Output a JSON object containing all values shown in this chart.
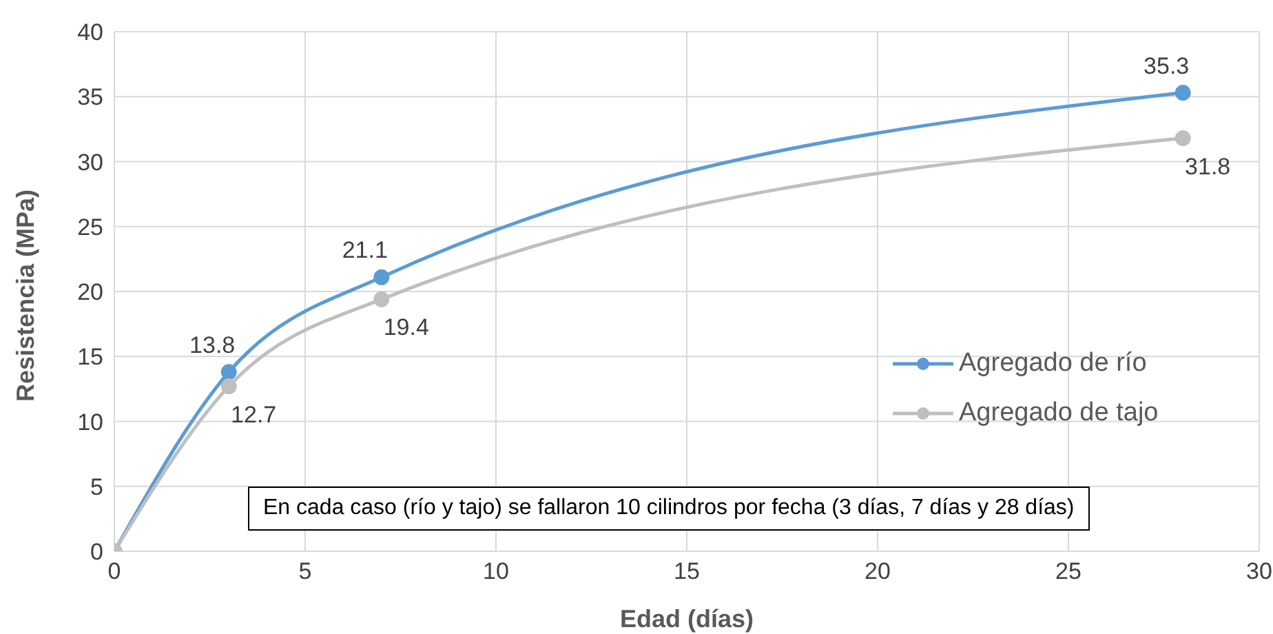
{
  "chart_data": {
    "type": "line",
    "xlabel": "Edad (días)",
    "ylabel": "Resistencia (MPa)",
    "x": [
      0,
      3,
      7,
      28
    ],
    "series": [
      {
        "name": "Agregado de río",
        "color": "#5b9bd5",
        "values": [
          0,
          13.8,
          21.1,
          35.3
        ],
        "value_labels": [
          null,
          "13.8",
          "21.1",
          "35.3"
        ]
      },
      {
        "name": "Agregado de tajo",
        "color": "#bfbfbf",
        "values": [
          0,
          12.7,
          19.4,
          31.8
        ],
        "value_labels": [
          null,
          "12.7",
          "19.4",
          "31.8"
        ]
      }
    ],
    "xlim": [
      0,
      30
    ],
    "xticks": [
      0,
      5,
      10,
      15,
      20,
      25,
      30
    ],
    "ylim": [
      0,
      40
    ],
    "yticks": [
      0,
      5,
      10,
      15,
      20,
      25,
      30,
      35,
      40
    ],
    "grid": true,
    "legend": "right",
    "marker": "circle",
    "line_style": "solid",
    "annotations": [
      "En cada caso (río y tajo) se fallaron 10 cilindros por fecha (3 días, 7 días y 28 días)"
    ]
  }
}
